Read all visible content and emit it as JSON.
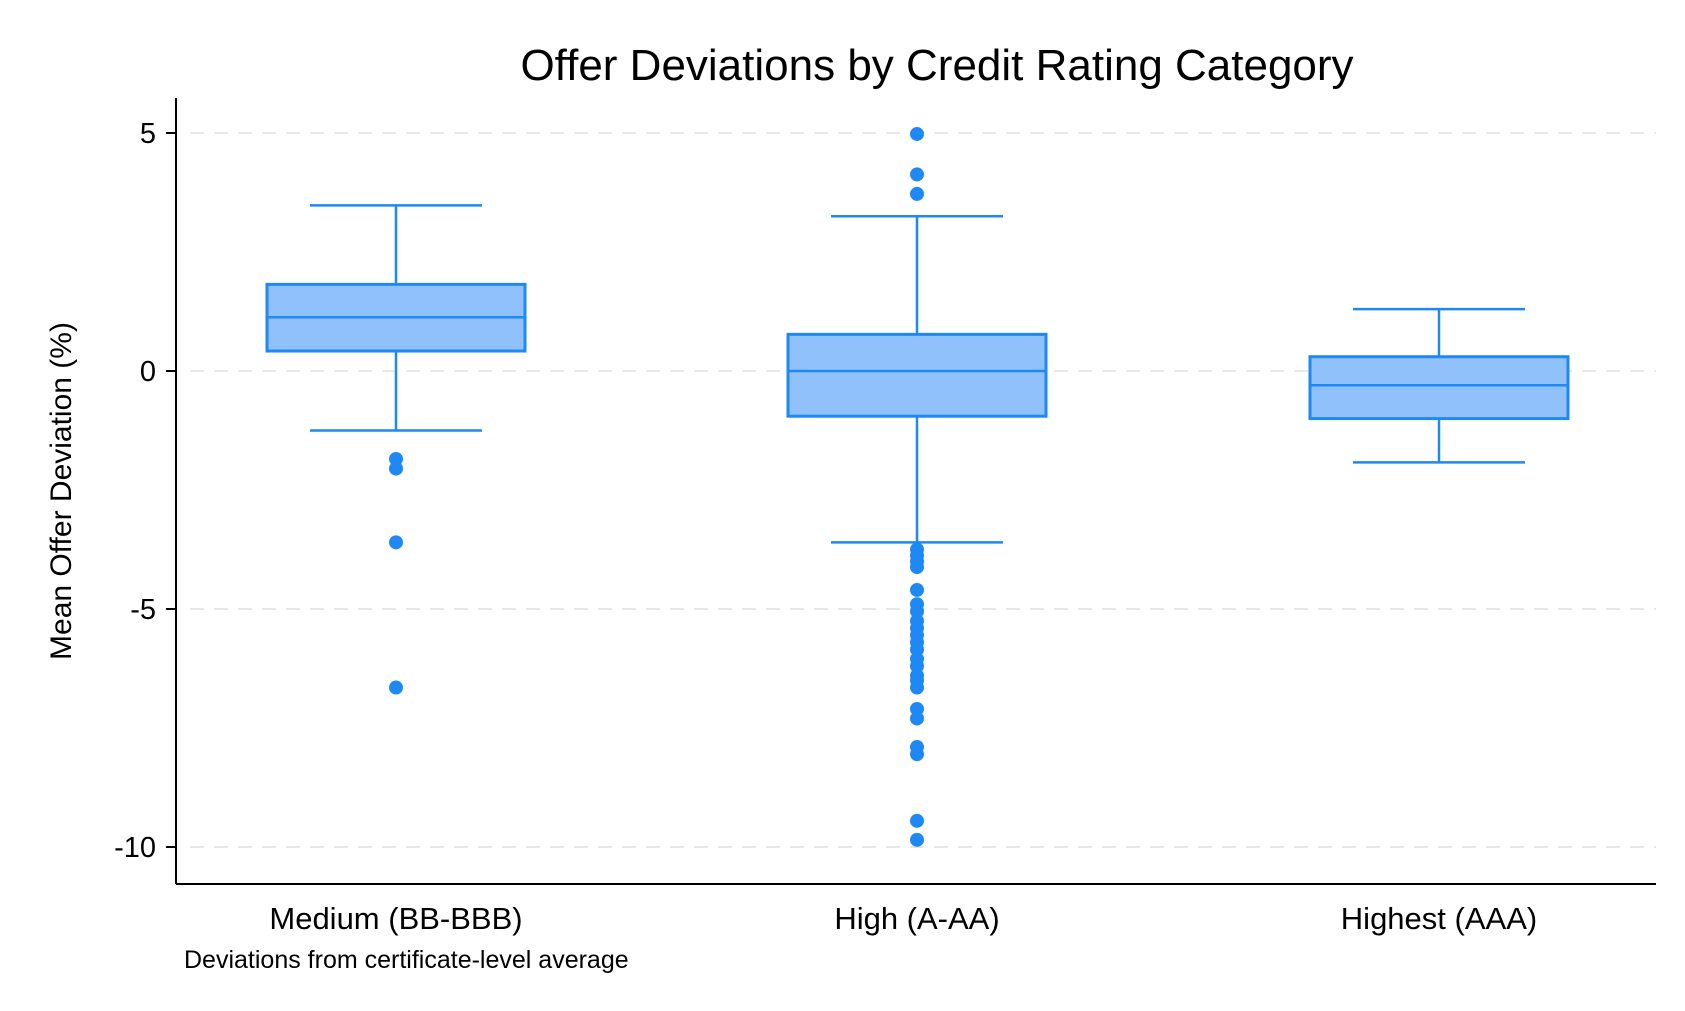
{
  "chart_data": {
    "type": "box",
    "title": "Offer Deviations by Credit Rating Category",
    "ylabel": "Mean Offer Deviation (%)",
    "xlabel": "",
    "note": "Deviations from certificate-level average",
    "ylim": [
      -10.7,
      5.8
    ],
    "yticks": [
      5,
      0,
      -5,
      -10
    ],
    "grid": true,
    "colors": {
      "box_fill": "#90c1fb",
      "box_stroke": "#1e88f5",
      "grid": "#e8e8e8",
      "axis": "#000000"
    },
    "categories": [
      "Medium (BB-BBB)",
      "High (A-AA)",
      "Highest (AAA)"
    ],
    "boxes": [
      {
        "category": "Medium (BB-BBB)",
        "whisker_low": -1.25,
        "q1": 0.42,
        "median": 1.13,
        "q3": 1.82,
        "whisker_high": 3.48,
        "outliers": [
          -1.85,
          -2.05,
          -3.6,
          -6.65
        ]
      },
      {
        "category": "High (A-AA)",
        "whisker_low": -3.6,
        "q1": -0.95,
        "median": 0.0,
        "q3": 0.77,
        "whisker_high": 3.25,
        "outliers": [
          4.98,
          4.13,
          3.72,
          -3.75,
          -3.88,
          -4.0,
          -4.12,
          -4.6,
          -4.9,
          -5.05,
          -5.25,
          -5.4,
          -5.55,
          -5.7,
          -5.85,
          -6.05,
          -6.2,
          -6.4,
          -6.5,
          -6.65,
          -7.1,
          -7.3,
          -7.9,
          -8.05,
          -9.45,
          -9.85
        ]
      },
      {
        "category": "Highest (AAA)",
        "whisker_low": -1.92,
        "q1": -1.0,
        "median": -0.3,
        "q3": 0.3,
        "whisker_high": 1.3,
        "outliers": []
      }
    ]
  }
}
